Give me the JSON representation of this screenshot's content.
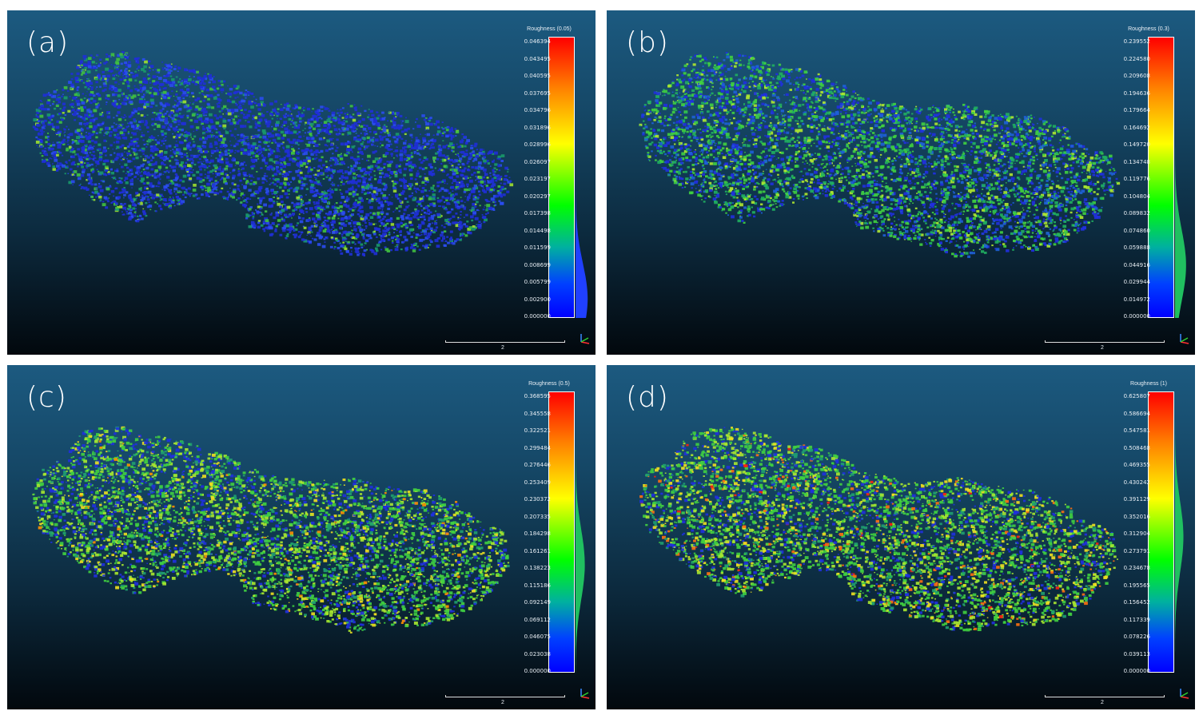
{
  "panels": [
    {
      "label": "(a)",
      "scalar_title": "Roughness (0.05)",
      "ticks": [
        "0.046394",
        "0.043495",
        "0.040595",
        "0.037695",
        "0.034796",
        "0.031896",
        "0.028996",
        "0.026097",
        "0.023197",
        "0.020297",
        "0.017398",
        "0.014498",
        "0.011599",
        "0.008699",
        "0.005799",
        "0.002900",
        "0.000000"
      ],
      "scale_label": "2",
      "color_profile": "mostly-blue"
    },
    {
      "label": "(b)",
      "scalar_title": "Roughness (0.3)",
      "ticks": [
        "0.239552",
        "0.224580",
        "0.209608",
        "0.194636",
        "0.179664",
        "0.164692",
        "0.149720",
        "0.134748",
        "0.119776",
        "0.104804",
        "0.089832",
        "0.074860",
        "0.059888",
        "0.044916",
        "0.029944",
        "0.014972",
        "0.000000"
      ],
      "scale_label": "2",
      "color_profile": "blue-green"
    },
    {
      "label": "(c)",
      "scalar_title": "Roughness (0.5)",
      "ticks": [
        "0.368595",
        "0.345558",
        "0.322521",
        "0.299484",
        "0.276446",
        "0.253409",
        "0.230372",
        "0.207335",
        "0.184298",
        "0.161261",
        "0.138223",
        "0.115186",
        "0.092149",
        "0.069112",
        "0.046075",
        "0.023038",
        "0.000000"
      ],
      "scale_label": "2",
      "color_profile": "green-yellow"
    },
    {
      "label": "(d)",
      "scalar_title": "Roughness (1)",
      "ticks": [
        "0.625807",
        "0.586694",
        "0.547581",
        "0.508468",
        "0.469355",
        "0.430242",
        "0.391129",
        "0.352016",
        "0.312904",
        "0.273791",
        "0.234678",
        "0.195565",
        "0.156452",
        "0.117339",
        "0.078226",
        "0.039113",
        "0.000000"
      ],
      "scale_label": "2",
      "color_profile": "green-yellow-red"
    }
  ],
  "colors": {
    "background_top": "#1c5a80",
    "background_bottom": "#02080d",
    "scale_high": "#ff0000",
    "scale_mid": "#ffff00",
    "scale_low": "#0000ff"
  }
}
